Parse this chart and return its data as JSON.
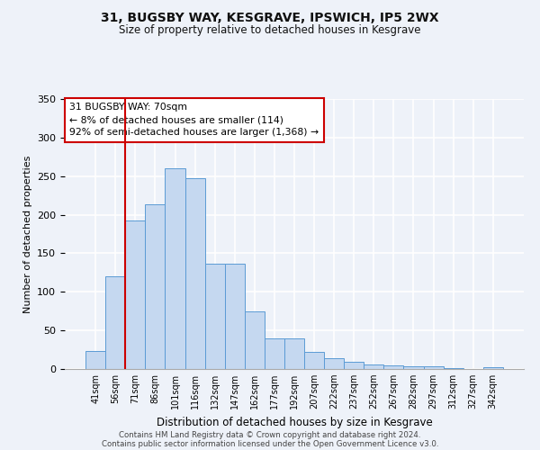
{
  "title_line1": "31, BUGSBY WAY, KESGRAVE, IPSWICH, IP5 2WX",
  "title_line2": "Size of property relative to detached houses in Kesgrave",
  "xlabel": "Distribution of detached houses by size in Kesgrave",
  "ylabel": "Number of detached properties",
  "bar_labels": [
    "41sqm",
    "56sqm",
    "71sqm",
    "86sqm",
    "101sqm",
    "116sqm",
    "132sqm",
    "147sqm",
    "162sqm",
    "177sqm",
    "192sqm",
    "207sqm",
    "222sqm",
    "237sqm",
    "252sqm",
    "267sqm",
    "282sqm",
    "297sqm",
    "312sqm",
    "327sqm",
    "342sqm"
  ],
  "bar_values": [
    23,
    120,
    193,
    213,
    260,
    247,
    136,
    136,
    75,
    40,
    40,
    22,
    14,
    9,
    6,
    5,
    4,
    3,
    1,
    0,
    2
  ],
  "bar_color": "#c5d8f0",
  "bar_edge_color": "#5b9bd5",
  "vline_color": "#cc0000",
  "annotation_title": "31 BUGSBY WAY: 70sqm",
  "annotation_line1": "← 8% of detached houses are smaller (114)",
  "annotation_line2": "92% of semi-detached houses are larger (1,368) →",
  "annotation_box_color": "#cc0000",
  "ylim": [
    0,
    350
  ],
  "yticks": [
    0,
    50,
    100,
    150,
    200,
    250,
    300,
    350
  ],
  "footer_line1": "Contains HM Land Registry data © Crown copyright and database right 2024.",
  "footer_line2": "Contains public sector information licensed under the Open Government Licence v3.0.",
  "background_color": "#eef2f9",
  "plot_bg_color": "#eef2f9",
  "grid_color": "#ffffff"
}
